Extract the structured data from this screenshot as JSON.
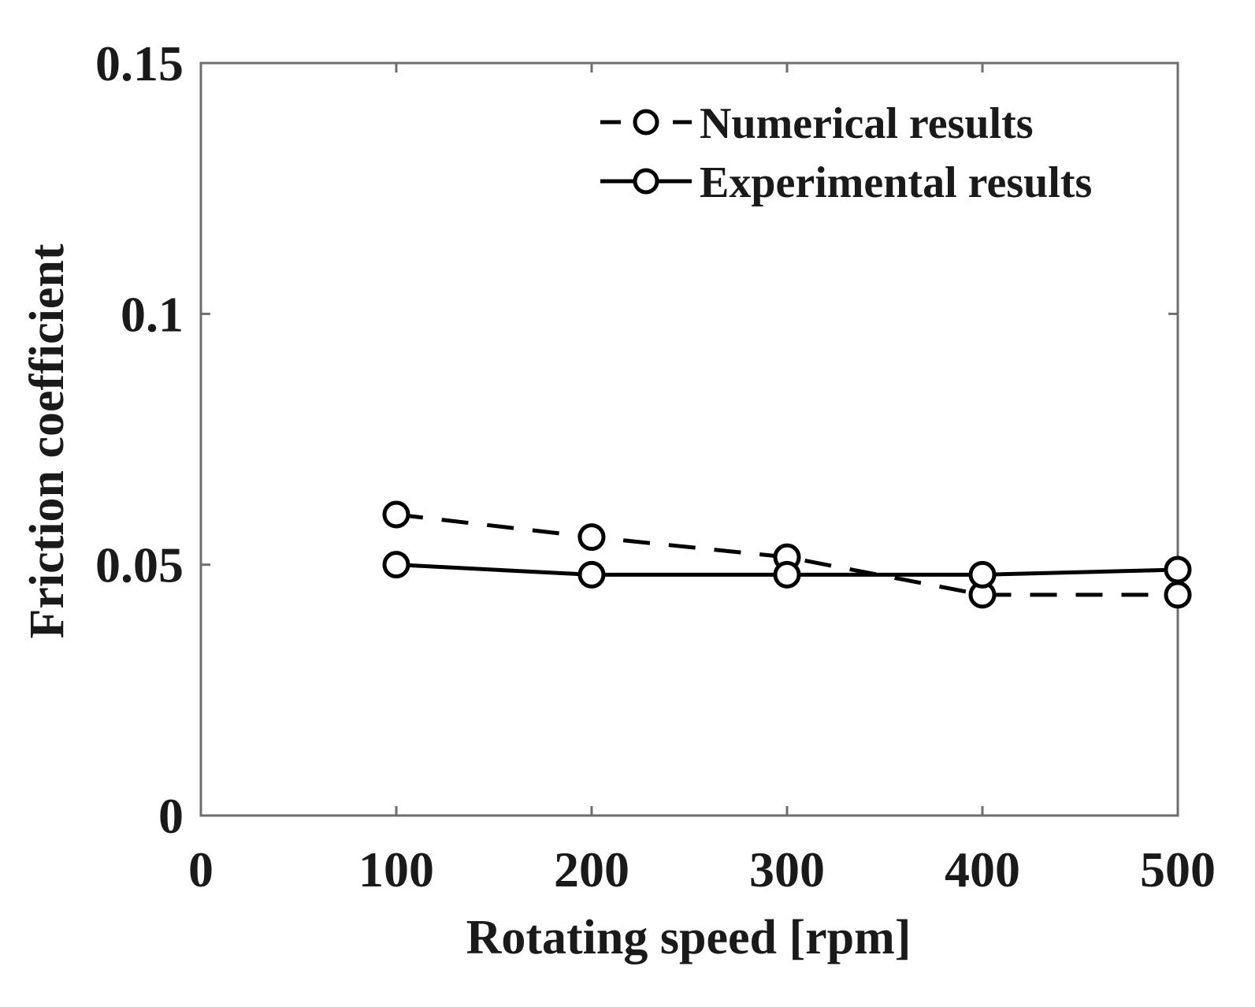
{
  "chart_data": {
    "type": "line",
    "title": "",
    "xlabel": "Rotating speed [rpm]",
    "ylabel": "Friction coefficient",
    "xlim": [
      0,
      500
    ],
    "ylim": [
      0,
      0.15
    ],
    "xticks": [
      0,
      100,
      200,
      300,
      400,
      500
    ],
    "xtick_labels": [
      "0",
      "100",
      "200",
      "300",
      "400",
      "500"
    ],
    "yticks": [
      0,
      0.05,
      0.1,
      0.15
    ],
    "ytick_labels": [
      "0",
      "0.05",
      "0.1",
      "0.15"
    ],
    "grid": false,
    "legend_position": "top-right",
    "series": [
      {
        "name": "Numerical results",
        "line_style": "dashed",
        "marker": "circle",
        "color": "#000000",
        "x": [
          100,
          200,
          300,
          400,
          500
        ],
        "values": [
          0.06,
          0.0555,
          0.0515,
          0.044,
          0.044
        ]
      },
      {
        "name": "Experimental results",
        "line_style": "solid",
        "marker": "circle",
        "color": "#000000",
        "x": [
          100,
          200,
          300,
          400,
          500
        ],
        "values": [
          0.05,
          0.048,
          0.048,
          0.048,
          0.049
        ]
      }
    ]
  }
}
